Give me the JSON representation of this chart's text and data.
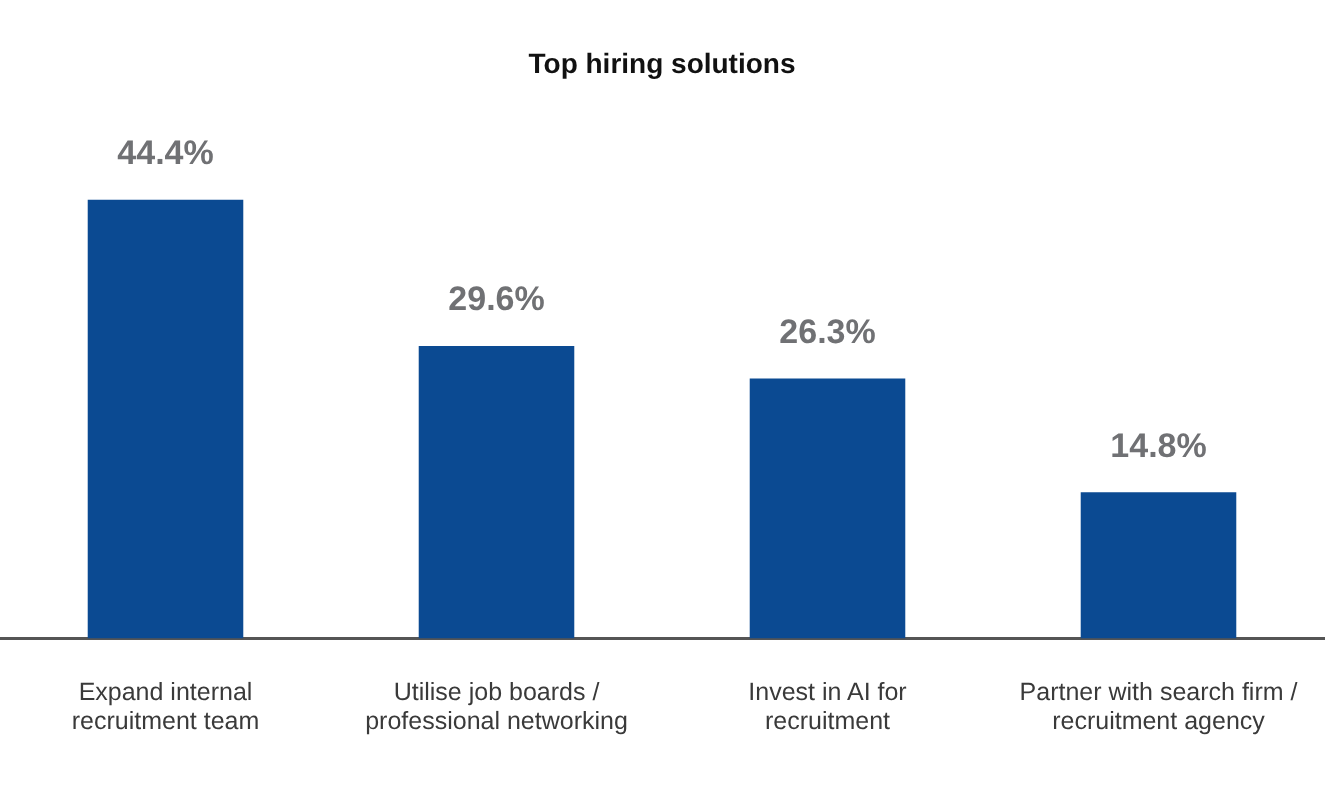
{
  "chart_data": {
    "type": "bar",
    "title": "Top hiring solutions",
    "categories": [
      "Expand internal\nrecruitment team",
      "Utilise job boards /\nprofessional networking",
      "Invest in AI for\nrecruitment",
      "Partner with search firm /\nrecruitment agency"
    ],
    "values": [
      44.4,
      29.6,
      26.3,
      14.8
    ],
    "color": "#0b4a92",
    "value_labels": [
      "44.4%",
      "29.6%",
      "26.3%",
      "14.8%"
    ]
  }
}
